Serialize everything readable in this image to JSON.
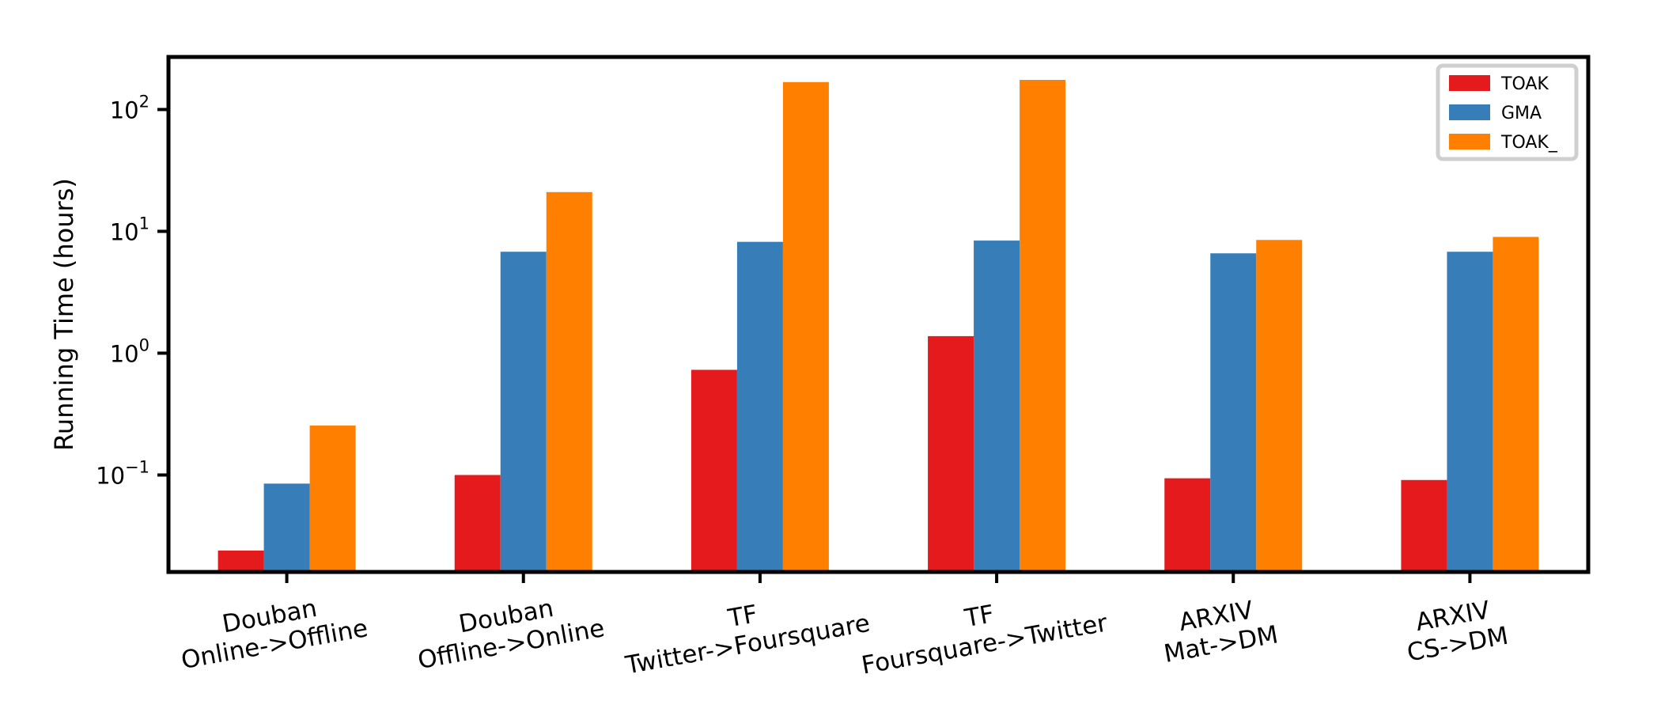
{
  "chart_data": {
    "type": "bar",
    "title": "",
    "xlabel": "",
    "ylabel": "Running Time (hours)",
    "yscale": "log",
    "ylim": [
      0.016,
      270
    ],
    "yticks": [
      {
        "value": 0.1,
        "base": "10",
        "exp": "−1"
      },
      {
        "value": 1,
        "base": "10",
        "exp": "0"
      },
      {
        "value": 10,
        "base": "10",
        "exp": "1"
      },
      {
        "value": 100,
        "base": "10",
        "exp": "2"
      }
    ],
    "categories": [
      [
        "Douban",
        "Online->Offline"
      ],
      [
        "Douban",
        "Offline->Online"
      ],
      [
        "TF",
        "Twitter->Foursquare"
      ],
      [
        "TF",
        "Foursquare->Twitter"
      ],
      [
        "ARXIV",
        "Mat->DM"
      ],
      [
        "ARXIV",
        "CS->DM"
      ]
    ],
    "series": [
      {
        "name": "TOAK",
        "color": "#e41a1c",
        "values": [
          0.024,
          0.1,
          0.73,
          1.38,
          0.094,
          0.091
        ]
      },
      {
        "name": "GMA",
        "color": "#377eb8",
        "values": [
          0.085,
          6.8,
          8.2,
          8.4,
          6.6,
          6.8
        ]
      },
      {
        "name": "TOAK_",
        "color": "#ff7f00",
        "values": [
          0.255,
          21,
          168,
          175,
          8.5,
          9
        ]
      }
    ],
    "grid": false,
    "legend_position": "top-right"
  }
}
